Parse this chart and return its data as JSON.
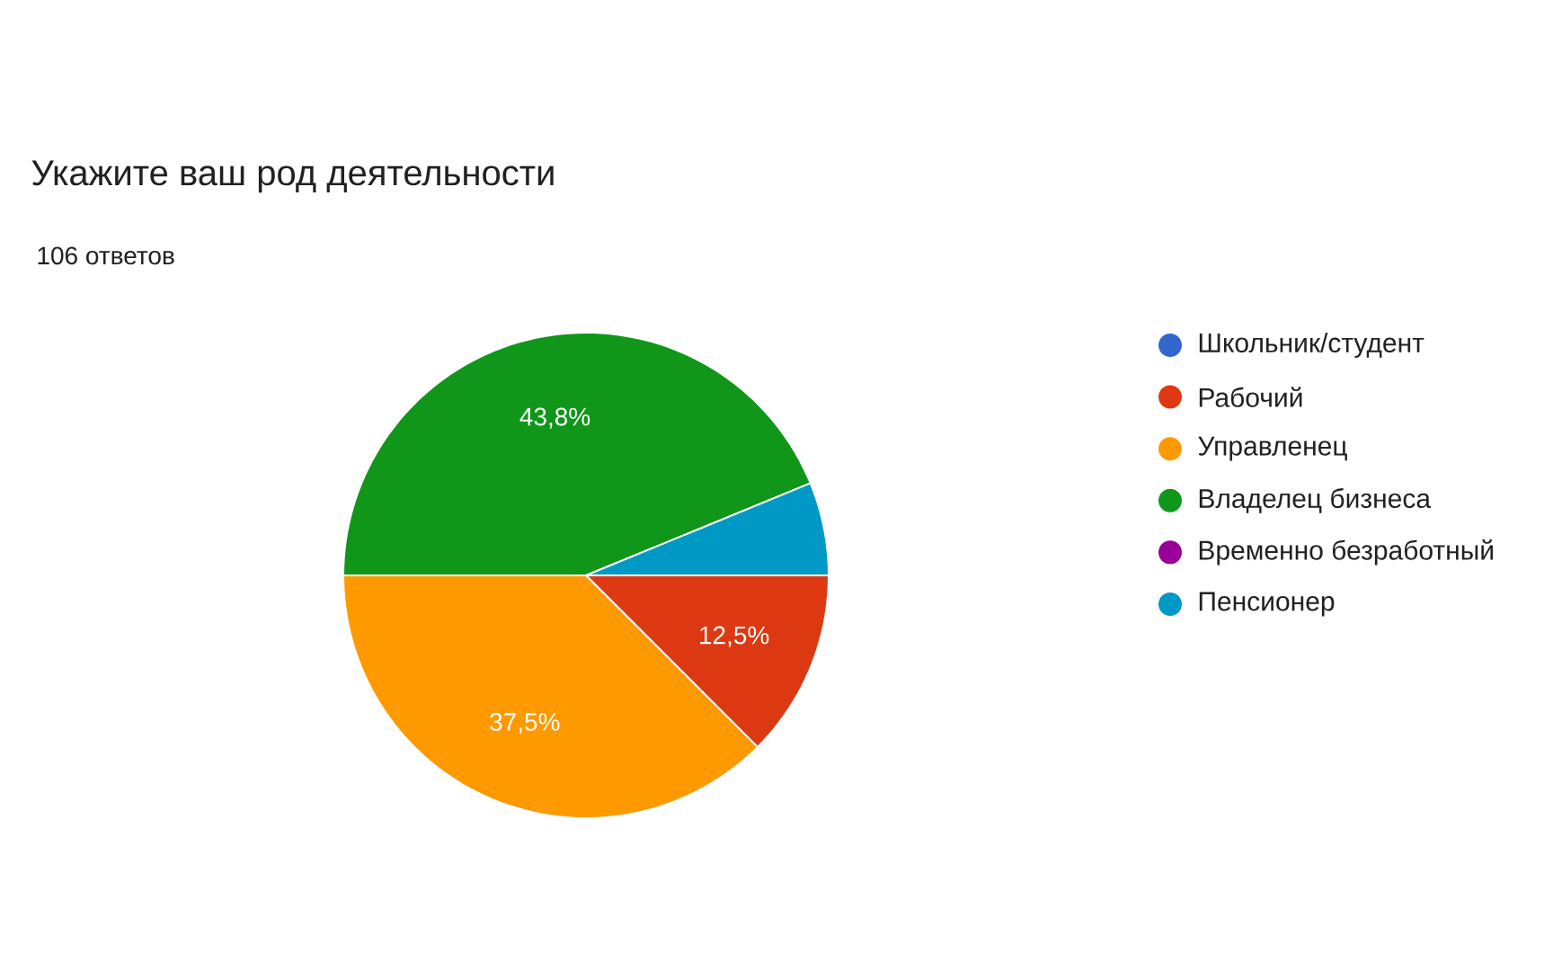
{
  "chart_data": {
    "type": "pie",
    "title": "Укажите ваш род деятельности",
    "subtitle": "106 ответов",
    "categories": [
      "Школьник/студент",
      "Рабочий",
      "Управленец",
      "Владелец бизнеса",
      "Временно безработный",
      "Пенсионер"
    ],
    "values": [
      0,
      12.5,
      37.5,
      43.8,
      0,
      6.2
    ],
    "value_labels": [
      null,
      "12,5%",
      "37,5%",
      "43,8%",
      null,
      null
    ],
    "colors": [
      "#3366cc",
      "#dc3912",
      "#ff9900",
      "#109618",
      "#990099",
      "#0099c6"
    ],
    "legend": "right"
  }
}
